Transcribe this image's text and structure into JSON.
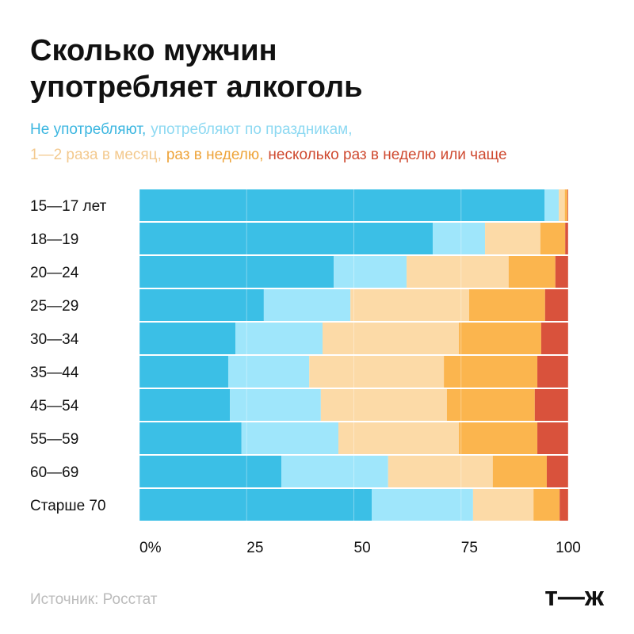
{
  "chart_data": {
    "type": "stacked-barh",
    "title": [
      "Сколько мужчин",
      "употребляет алкоголь"
    ],
    "categories": [
      "15—17 лет",
      "18—19",
      "20—24",
      "25—29",
      "30—34",
      "35—44",
      "45—54",
      "55—59",
      "60—69",
      "Старше 70"
    ],
    "series": [
      {
        "name": "Не употребляют,",
        "color": "#3bbfe6",
        "text_color": "#3bb6e0",
        "values": [
          94.5,
          68.4,
          45.3,
          29.0,
          22.4,
          20.7,
          21.1,
          23.8,
          33.1,
          54.2
        ]
      },
      {
        "name": "употребляют по праздникам,",
        "color": "#9fe6fb",
        "text_color": "#8dd9f2",
        "values": [
          3.3,
          12.2,
          17.0,
          20.2,
          20.3,
          18.9,
          21.2,
          22.6,
          24.9,
          23.6
        ]
      },
      {
        "name": "1—2 раза в месяц,",
        "color": "#fcdaa7",
        "text_color": "#f3c98e",
        "values": [
          1.4,
          12.9,
          23.8,
          27.7,
          31.8,
          31.4,
          29.4,
          28.1,
          24.4,
          14.1
        ]
      },
      {
        "name": "раз в неделю,",
        "color": "#fbb54e",
        "text_color": "#eea43a",
        "values": [
          0.6,
          5.8,
          10.9,
          17.7,
          19.2,
          21.8,
          20.5,
          18.3,
          12.6,
          6.1
        ]
      },
      {
        "name": "несколько раз в неделю или чаще",
        "color": "#d9523c",
        "text_color": "#cf4a30",
        "values": [
          0.2,
          0.7,
          3.0,
          5.4,
          6.3,
          7.2,
          7.8,
          7.2,
          5.0,
          2.0
        ]
      }
    ],
    "xlim": [
      0,
      100
    ],
    "xticks": [
      {
        "value": 0,
        "label": "0%"
      },
      25,
      50,
      75,
      100
    ],
    "grid": true,
    "source": "Источник: Росстат",
    "logo": "т—ж"
  }
}
